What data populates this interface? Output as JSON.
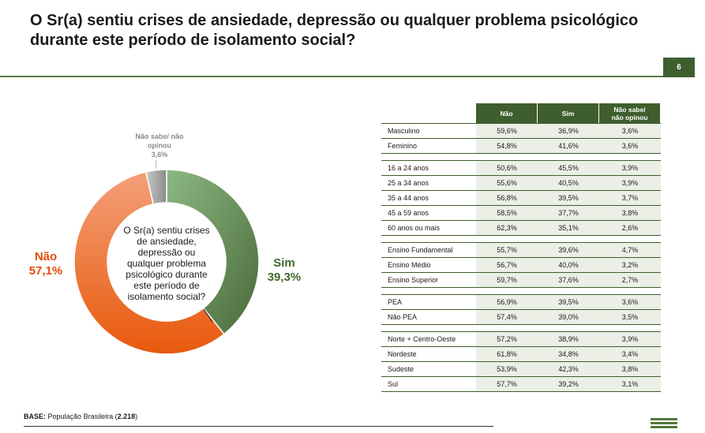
{
  "title": "O Sr(a) sentiu crises de ansiedade, depressão ou qualquer problema psicológico durante este período de isolamento social?",
  "page_number": "6",
  "base": {
    "label": "BASE:",
    "text": "População Brasileira (",
    "count": "2.218",
    "close": ")"
  },
  "colors": {
    "nao": "#e8590c",
    "nao_light": "#f4a07a",
    "sim": "#4a6a3a",
    "sim_light": "#8cb882",
    "ns": "#8a8a8a",
    "ns_light": "#c8c8c8",
    "header": "#3f5e2e",
    "label_sim": "#3f6a2a",
    "label_nao": "#e24c0a",
    "label_ns": "#8a8a8a"
  },
  "chart_data": {
    "type": "pie",
    "donut": true,
    "center_text": "O Sr(a) sentiu crises de ansiedade, depressão ou qualquer problema psicológico durante este período de isolamento social?",
    "slices": [
      {
        "label": "Sim",
        "value": 39.3,
        "value_text": "39,3%"
      },
      {
        "label": "Não",
        "value": 57.1,
        "value_text": "57,1%"
      },
      {
        "label": "Não sabe/ não opinou",
        "value": 3.6,
        "value_text": "3,6%"
      }
    ]
  },
  "table": {
    "headers": [
      "",
      "Não",
      "Sim",
      "Não sabe/ não opinou"
    ],
    "groups": [
      [
        [
          "Masculino",
          "59,6%",
          "36,9%",
          "3,6%"
        ],
        [
          "Feminino",
          "54,8%",
          "41,6%",
          "3,6%"
        ]
      ],
      [
        [
          "16 a 24 anos",
          "50,6%",
          "45,5%",
          "3,9%"
        ],
        [
          "25 a 34 anos",
          "55,6%",
          "40,5%",
          "3,9%"
        ],
        [
          "35 a 44 anos",
          "56,8%",
          "39,5%",
          "3,7%"
        ],
        [
          "45 a 59 anos",
          "58,5%",
          "37,7%",
          "3,8%"
        ],
        [
          "60 anos ou mais",
          "62,3%",
          "35,1%",
          "2,6%"
        ]
      ],
      [
        [
          "Ensino Fundamental",
          "55,7%",
          "39,6%",
          "4,7%"
        ],
        [
          "Ensino Médio",
          "56,7%",
          "40,0%",
          "3,2%"
        ],
        [
          "Ensino Superior",
          "59,7%",
          "37,6%",
          "2,7%"
        ]
      ],
      [
        [
          "PEA",
          "56,9%",
          "39,5%",
          "3,6%"
        ],
        [
          "Não PEA",
          "57,4%",
          "39,0%",
          "3,5%"
        ]
      ],
      [
        [
          "Norte + Centro-Oeste",
          "57,2%",
          "38,9%",
          "3,9%"
        ],
        [
          "Nordeste",
          "61,8%",
          "34,8%",
          "3,4%"
        ],
        [
          "Sudeste",
          "53,9%",
          "42,3%",
          "3,8%"
        ],
        [
          "Sul",
          "57,7%",
          "39,2%",
          "3,1%"
        ]
      ]
    ]
  }
}
